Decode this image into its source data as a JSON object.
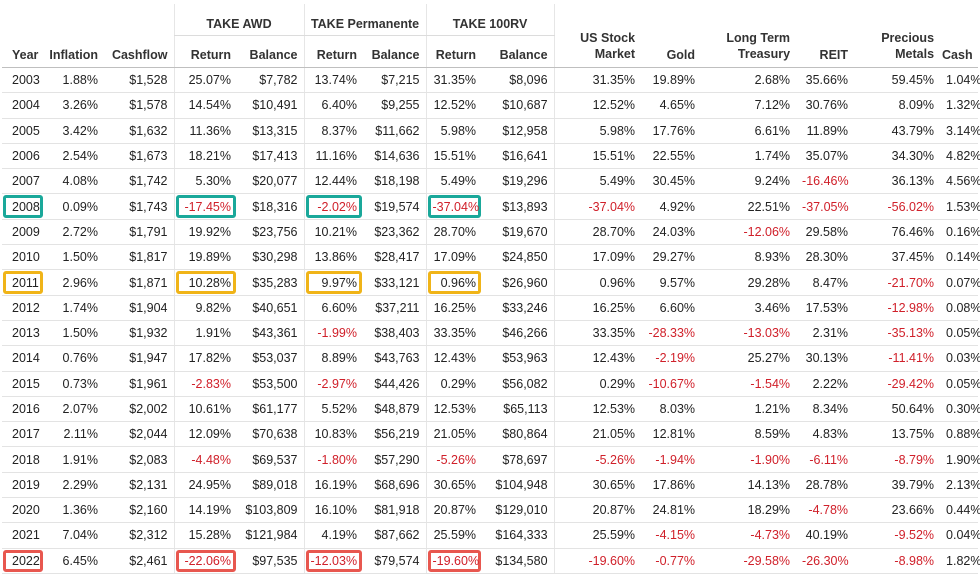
{
  "groups": {
    "awd": "TAKE AWD",
    "perm": "TAKE Permanente",
    "rv": "TAKE 100RV"
  },
  "columns": {
    "year": "Year",
    "inflation": "Inflation",
    "cashflow": "Cashflow",
    "return": "Return",
    "balance": "Balance",
    "us_stock_1": "US Stock",
    "us_stock_2": "Market",
    "gold": "Gold",
    "ltt_1": "Long Term",
    "ltt_2": "Treasury",
    "reit": "REIT",
    "pm_1": "Precious",
    "pm_2": "Metals",
    "cash": "Cash"
  },
  "colors": {
    "negative": "#d0202a",
    "highlight_2008": "#1aa89a",
    "highlight_2011": "#f0b418",
    "highlight_2022": "#e8574f"
  },
  "rows": [
    {
      "year": "2003",
      "inflation": "1.88%",
      "cashflow": "$1,528",
      "awd_return": "25.07%",
      "awd_balance": "$7,782",
      "perm_return": "13.74%",
      "perm_balance": "$7,215",
      "rv_return": "31.35%",
      "rv_balance": "$8,096",
      "us_stock": "31.35%",
      "gold": "19.89%",
      "ltt": "2.68%",
      "reit": "35.66%",
      "pm": "59.45%",
      "cash": "1.04%"
    },
    {
      "year": "2004",
      "inflation": "3.26%",
      "cashflow": "$1,578",
      "awd_return": "14.54%",
      "awd_balance": "$10,491",
      "perm_return": "6.40%",
      "perm_balance": "$9,255",
      "rv_return": "12.52%",
      "rv_balance": "$10,687",
      "us_stock": "12.52%",
      "gold": "4.65%",
      "ltt": "7.12%",
      "reit": "30.76%",
      "pm": "8.09%",
      "cash": "1.32%"
    },
    {
      "year": "2005",
      "inflation": "3.42%",
      "cashflow": "$1,632",
      "awd_return": "11.36%",
      "awd_balance": "$13,315",
      "perm_return": "8.37%",
      "perm_balance": "$11,662",
      "rv_return": "5.98%",
      "rv_balance": "$12,958",
      "us_stock": "5.98%",
      "gold": "17.76%",
      "ltt": "6.61%",
      "reit": "11.89%",
      "pm": "43.79%",
      "cash": "3.14%"
    },
    {
      "year": "2006",
      "inflation": "2.54%",
      "cashflow": "$1,673",
      "awd_return": "18.21%",
      "awd_balance": "$17,413",
      "perm_return": "11.16%",
      "perm_balance": "$14,636",
      "rv_return": "15.51%",
      "rv_balance": "$16,641",
      "us_stock": "15.51%",
      "gold": "22.55%",
      "ltt": "1.74%",
      "reit": "35.07%",
      "pm": "34.30%",
      "cash": "4.82%"
    },
    {
      "year": "2007",
      "inflation": "4.08%",
      "cashflow": "$1,742",
      "awd_return": "5.30%",
      "awd_balance": "$20,077",
      "perm_return": "12.44%",
      "perm_balance": "$18,198",
      "rv_return": "5.49%",
      "rv_balance": "$19,296",
      "us_stock": "5.49%",
      "gold": "30.45%",
      "ltt": "9.24%",
      "reit": "-16.46%",
      "pm": "36.13%",
      "cash": "4.56%"
    },
    {
      "year": "2008",
      "inflation": "0.09%",
      "cashflow": "$1,743",
      "awd_return": "-17.45%",
      "awd_balance": "$18,316",
      "perm_return": "-2.02%",
      "perm_balance": "$19,574",
      "rv_return": "-37.04%",
      "rv_balance": "$13,893",
      "us_stock": "-37.04%",
      "gold": "4.92%",
      "ltt": "22.51%",
      "reit": "-37.05%",
      "pm": "-56.02%",
      "cash": "1.53%",
      "hl": "teal"
    },
    {
      "year": "2009",
      "inflation": "2.72%",
      "cashflow": "$1,791",
      "awd_return": "19.92%",
      "awd_balance": "$23,756",
      "perm_return": "10.21%",
      "perm_balance": "$23,362",
      "rv_return": "28.70%",
      "rv_balance": "$19,670",
      "us_stock": "28.70%",
      "gold": "24.03%",
      "ltt": "-12.06%",
      "reit": "29.58%",
      "pm": "76.46%",
      "cash": "0.16%"
    },
    {
      "year": "2010",
      "inflation": "1.50%",
      "cashflow": "$1,817",
      "awd_return": "19.89%",
      "awd_balance": "$30,298",
      "perm_return": "13.86%",
      "perm_balance": "$28,417",
      "rv_return": "17.09%",
      "rv_balance": "$24,850",
      "us_stock": "17.09%",
      "gold": "29.27%",
      "ltt": "8.93%",
      "reit": "28.30%",
      "pm": "37.45%",
      "cash": "0.14%"
    },
    {
      "year": "2011",
      "inflation": "2.96%",
      "cashflow": "$1,871",
      "awd_return": "10.28%",
      "awd_balance": "$35,283",
      "perm_return": "9.97%",
      "perm_balance": "$33,121",
      "rv_return": "0.96%",
      "rv_balance": "$26,960",
      "us_stock": "0.96%",
      "gold": "9.57%",
      "ltt": "29.28%",
      "reit": "8.47%",
      "pm": "-21.70%",
      "cash": "0.07%",
      "hl": "gold"
    },
    {
      "year": "2012",
      "inflation": "1.74%",
      "cashflow": "$1,904",
      "awd_return": "9.82%",
      "awd_balance": "$40,651",
      "perm_return": "6.60%",
      "perm_balance": "$37,211",
      "rv_return": "16.25%",
      "rv_balance": "$33,246",
      "us_stock": "16.25%",
      "gold": "6.60%",
      "ltt": "3.46%",
      "reit": "17.53%",
      "pm": "-12.98%",
      "cash": "0.08%"
    },
    {
      "year": "2013",
      "inflation": "1.50%",
      "cashflow": "$1,932",
      "awd_return": "1.91%",
      "awd_balance": "$43,361",
      "perm_return": "-1.99%",
      "perm_balance": "$38,403",
      "rv_return": "33.35%",
      "rv_balance": "$46,266",
      "us_stock": "33.35%",
      "gold": "-28.33%",
      "ltt": "-13.03%",
      "reit": "2.31%",
      "pm": "-35.13%",
      "cash": "0.05%"
    },
    {
      "year": "2014",
      "inflation": "0.76%",
      "cashflow": "$1,947",
      "awd_return": "17.82%",
      "awd_balance": "$53,037",
      "perm_return": "8.89%",
      "perm_balance": "$43,763",
      "rv_return": "12.43%",
      "rv_balance": "$53,963",
      "us_stock": "12.43%",
      "gold": "-2.19%",
      "ltt": "25.27%",
      "reit": "30.13%",
      "pm": "-11.41%",
      "cash": "0.03%"
    },
    {
      "year": "2015",
      "inflation": "0.73%",
      "cashflow": "$1,961",
      "awd_return": "-2.83%",
      "awd_balance": "$53,500",
      "perm_return": "-2.97%",
      "perm_balance": "$44,426",
      "rv_return": "0.29%",
      "rv_balance": "$56,082",
      "us_stock": "0.29%",
      "gold": "-10.67%",
      "ltt": "-1.54%",
      "reit": "2.22%",
      "pm": "-29.42%",
      "cash": "0.05%"
    },
    {
      "year": "2016",
      "inflation": "2.07%",
      "cashflow": "$2,002",
      "awd_return": "10.61%",
      "awd_balance": "$61,177",
      "perm_return": "5.52%",
      "perm_balance": "$48,879",
      "rv_return": "12.53%",
      "rv_balance": "$65,113",
      "us_stock": "12.53%",
      "gold": "8.03%",
      "ltt": "1.21%",
      "reit": "8.34%",
      "pm": "50.64%",
      "cash": "0.30%"
    },
    {
      "year": "2017",
      "inflation": "2.11%",
      "cashflow": "$2,044",
      "awd_return": "12.09%",
      "awd_balance": "$70,638",
      "perm_return": "10.83%",
      "perm_balance": "$56,219",
      "rv_return": "21.05%",
      "rv_balance": "$80,864",
      "us_stock": "21.05%",
      "gold": "12.81%",
      "ltt": "8.59%",
      "reit": "4.83%",
      "pm": "13.75%",
      "cash": "0.88%"
    },
    {
      "year": "2018",
      "inflation": "1.91%",
      "cashflow": "$2,083",
      "awd_return": "-4.48%",
      "awd_balance": "$69,537",
      "perm_return": "-1.80%",
      "perm_balance": "$57,290",
      "rv_return": "-5.26%",
      "rv_balance": "$78,697",
      "us_stock": "-5.26%",
      "gold": "-1.94%",
      "ltt": "-1.90%",
      "reit": "-6.11%",
      "pm": "-8.79%",
      "cash": "1.90%"
    },
    {
      "year": "2019",
      "inflation": "2.29%",
      "cashflow": "$2,131",
      "awd_return": "24.95%",
      "awd_balance": "$89,018",
      "perm_return": "16.19%",
      "perm_balance": "$68,696",
      "rv_return": "30.65%",
      "rv_balance": "$104,948",
      "us_stock": "30.65%",
      "gold": "17.86%",
      "ltt": "14.13%",
      "reit": "28.78%",
      "pm": "39.79%",
      "cash": "2.13%"
    },
    {
      "year": "2020",
      "inflation": "1.36%",
      "cashflow": "$2,160",
      "awd_return": "14.19%",
      "awd_balance": "$103,809",
      "perm_return": "16.10%",
      "perm_balance": "$81,918",
      "rv_return": "20.87%",
      "rv_balance": "$129,010",
      "us_stock": "20.87%",
      "gold": "24.81%",
      "ltt": "18.29%",
      "reit": "-4.78%",
      "pm": "23.66%",
      "cash": "0.44%"
    },
    {
      "year": "2021",
      "inflation": "7.04%",
      "cashflow": "$2,312",
      "awd_return": "15.28%",
      "awd_balance": "$121,984",
      "perm_return": "4.19%",
      "perm_balance": "$87,662",
      "rv_return": "25.59%",
      "rv_balance": "$164,333",
      "us_stock": "25.59%",
      "gold": "-4.15%",
      "ltt": "-4.73%",
      "reit": "40.19%",
      "pm": "-9.52%",
      "cash": "0.04%"
    },
    {
      "year": "2022",
      "inflation": "6.45%",
      "cashflow": "$2,461",
      "awd_return": "-22.06%",
      "awd_balance": "$97,535",
      "perm_return": "-12.03%",
      "perm_balance": "$79,574",
      "rv_return": "-19.60%",
      "rv_balance": "$134,580",
      "us_stock": "-19.60%",
      "gold": "-0.77%",
      "ltt": "-29.58%",
      "reit": "-26.30%",
      "pm": "-8.98%",
      "cash": "1.82%",
      "hl": "red"
    }
  ]
}
